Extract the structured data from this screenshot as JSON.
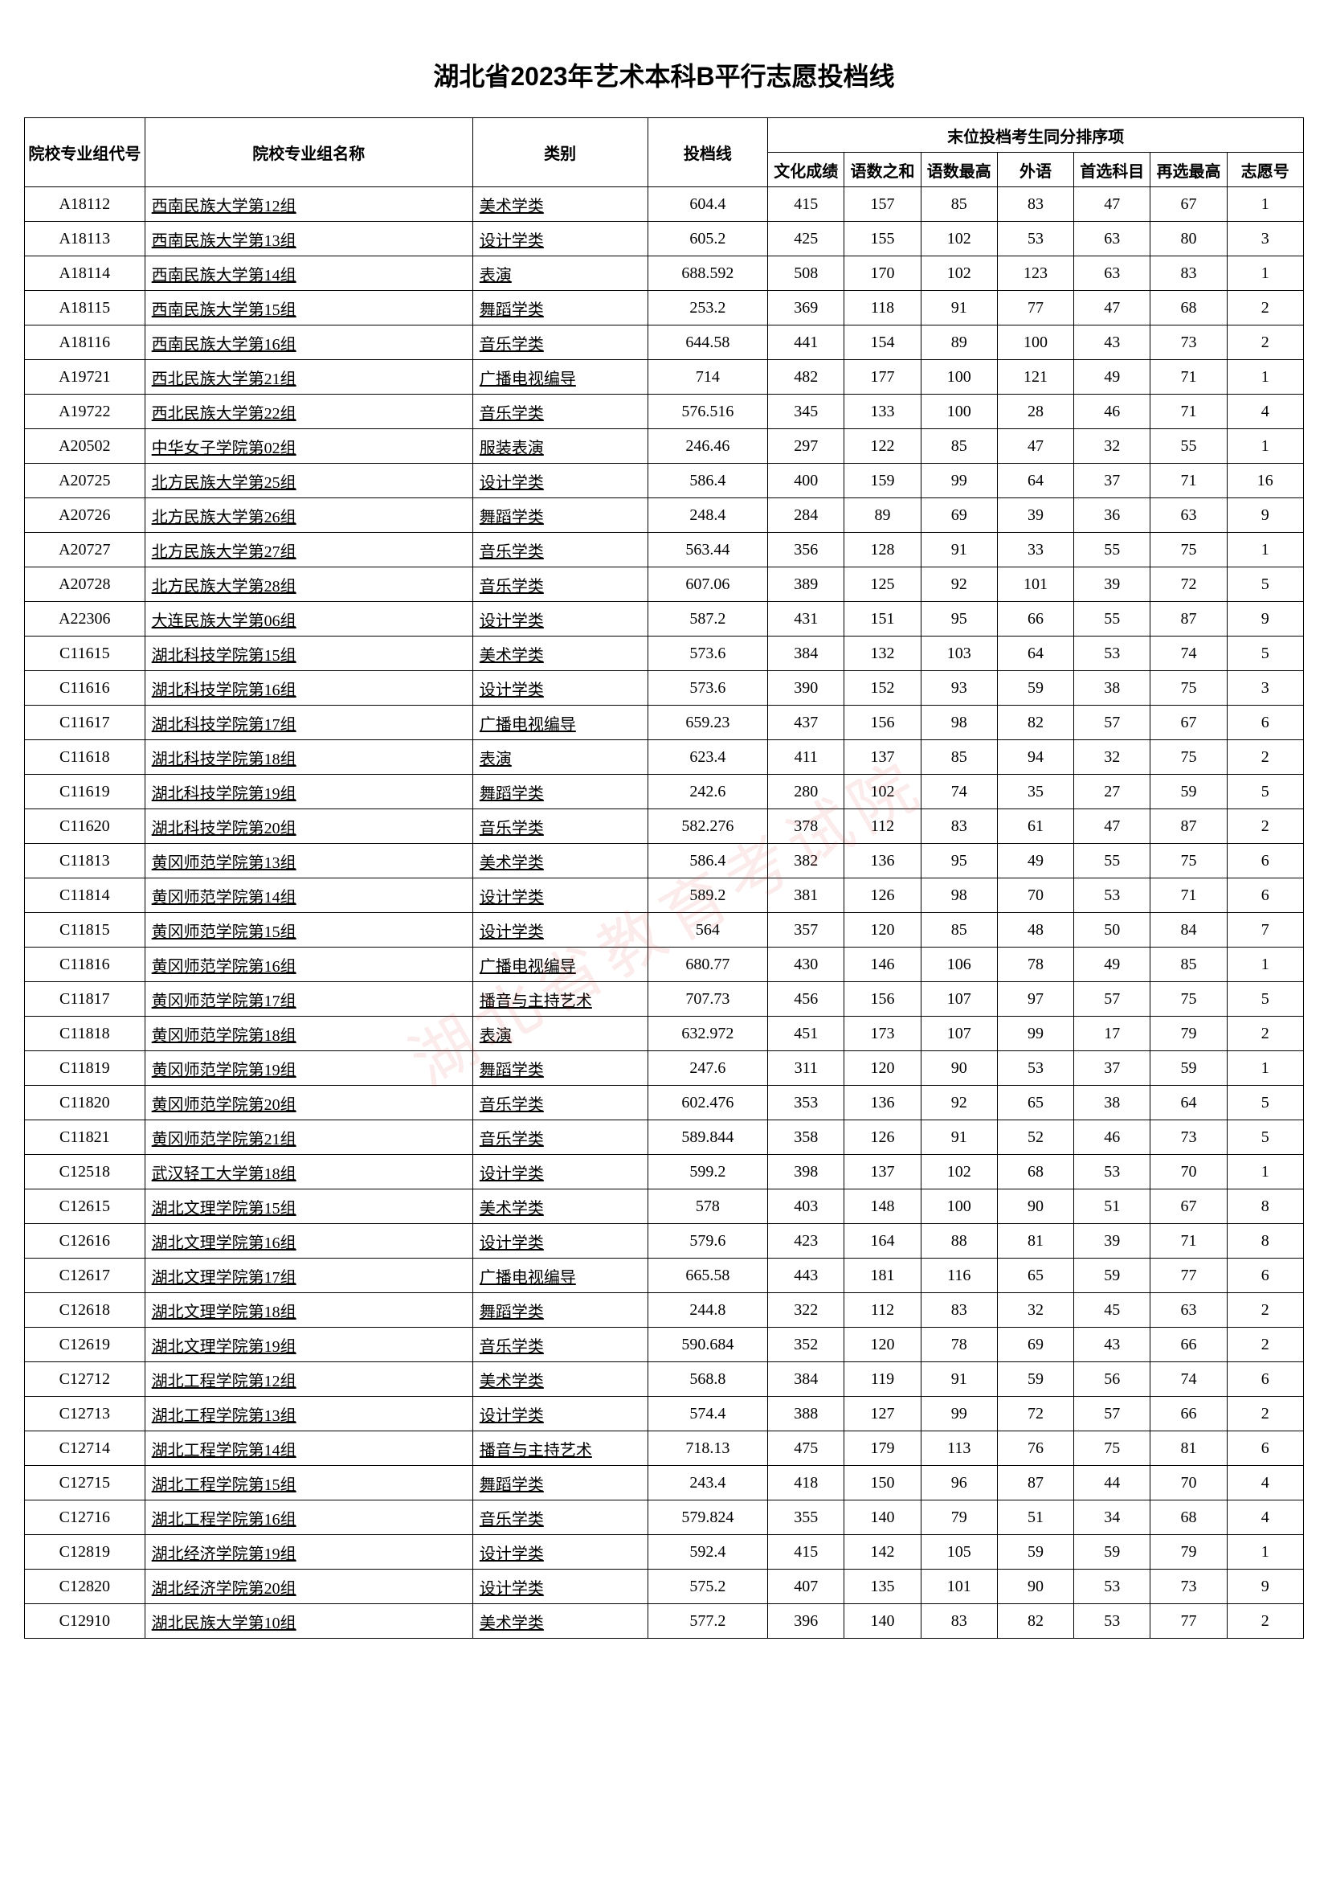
{
  "title": "湖北省2023年艺术本科B平行志愿投档线",
  "watermark": "湖北省教育考试院",
  "header": {
    "group_top": "末位投档考生同分排序项",
    "code": "院校专业组代号",
    "name": "院校专业组名称",
    "category": "类别",
    "score": "投档线",
    "c1": "文化成绩",
    "c2": "语数之和",
    "c3": "语数最高",
    "c4": "外语",
    "c5": "首选科目",
    "c6": "再选最高",
    "c7": "志愿号"
  },
  "rows": [
    {
      "code": "A18112",
      "name": "西南民族大学第12组",
      "cat": "美术学类",
      "score": "604.4",
      "c1": "415",
      "c2": "157",
      "c3": "85",
      "c4": "83",
      "c5": "47",
      "c6": "67",
      "c7": "1"
    },
    {
      "code": "A18113",
      "name": "西南民族大学第13组",
      "cat": "设计学类",
      "score": "605.2",
      "c1": "425",
      "c2": "155",
      "c3": "102",
      "c4": "53",
      "c5": "63",
      "c6": "80",
      "c7": "3"
    },
    {
      "code": "A18114",
      "name": "西南民族大学第14组",
      "cat": "表演",
      "score": "688.592",
      "c1": "508",
      "c2": "170",
      "c3": "102",
      "c4": "123",
      "c5": "63",
      "c6": "83",
      "c7": "1"
    },
    {
      "code": "A18115",
      "name": "西南民族大学第15组",
      "cat": "舞蹈学类",
      "score": "253.2",
      "c1": "369",
      "c2": "118",
      "c3": "91",
      "c4": "77",
      "c5": "47",
      "c6": "68",
      "c7": "2"
    },
    {
      "code": "A18116",
      "name": "西南民族大学第16组",
      "cat": "音乐学类",
      "score": "644.58",
      "c1": "441",
      "c2": "154",
      "c3": "89",
      "c4": "100",
      "c5": "43",
      "c6": "73",
      "c7": "2"
    },
    {
      "code": "A19721",
      "name": "西北民族大学第21组",
      "cat": "广播电视编导",
      "score": "714",
      "c1": "482",
      "c2": "177",
      "c3": "100",
      "c4": "121",
      "c5": "49",
      "c6": "71",
      "c7": "1"
    },
    {
      "code": "A19722",
      "name": "西北民族大学第22组",
      "cat": "音乐学类",
      "score": "576.516",
      "c1": "345",
      "c2": "133",
      "c3": "100",
      "c4": "28",
      "c5": "46",
      "c6": "71",
      "c7": "4"
    },
    {
      "code": "A20502",
      "name": "中华女子学院第02组",
      "cat": "服装表演",
      "score": "246.46",
      "c1": "297",
      "c2": "122",
      "c3": "85",
      "c4": "47",
      "c5": "32",
      "c6": "55",
      "c7": "1"
    },
    {
      "code": "A20725",
      "name": "北方民族大学第25组",
      "cat": "设计学类",
      "score": "586.4",
      "c1": "400",
      "c2": "159",
      "c3": "99",
      "c4": "64",
      "c5": "37",
      "c6": "71",
      "c7": "16"
    },
    {
      "code": "A20726",
      "name": "北方民族大学第26组",
      "cat": "舞蹈学类",
      "score": "248.4",
      "c1": "284",
      "c2": "89",
      "c3": "69",
      "c4": "39",
      "c5": "36",
      "c6": "63",
      "c7": "9"
    },
    {
      "code": "A20727",
      "name": "北方民族大学第27组",
      "cat": "音乐学类",
      "score": "563.44",
      "c1": "356",
      "c2": "128",
      "c3": "91",
      "c4": "33",
      "c5": "55",
      "c6": "75",
      "c7": "1"
    },
    {
      "code": "A20728",
      "name": "北方民族大学第28组",
      "cat": "音乐学类",
      "score": "607.06",
      "c1": "389",
      "c2": "125",
      "c3": "92",
      "c4": "101",
      "c5": "39",
      "c6": "72",
      "c7": "5"
    },
    {
      "code": "A22306",
      "name": "大连民族大学第06组",
      "cat": "设计学类",
      "score": "587.2",
      "c1": "431",
      "c2": "151",
      "c3": "95",
      "c4": "66",
      "c5": "55",
      "c6": "87",
      "c7": "9"
    },
    {
      "code": "C11615",
      "name": "湖北科技学院第15组",
      "cat": "美术学类",
      "score": "573.6",
      "c1": "384",
      "c2": "132",
      "c3": "103",
      "c4": "64",
      "c5": "53",
      "c6": "74",
      "c7": "5"
    },
    {
      "code": "C11616",
      "name": "湖北科技学院第16组",
      "cat": "设计学类",
      "score": "573.6",
      "c1": "390",
      "c2": "152",
      "c3": "93",
      "c4": "59",
      "c5": "38",
      "c6": "75",
      "c7": "3"
    },
    {
      "code": "C11617",
      "name": "湖北科技学院第17组",
      "cat": "广播电视编导",
      "score": "659.23",
      "c1": "437",
      "c2": "156",
      "c3": "98",
      "c4": "82",
      "c5": "57",
      "c6": "67",
      "c7": "6"
    },
    {
      "code": "C11618",
      "name": "湖北科技学院第18组",
      "cat": "表演",
      "score": "623.4",
      "c1": "411",
      "c2": "137",
      "c3": "85",
      "c4": "94",
      "c5": "32",
      "c6": "75",
      "c7": "2"
    },
    {
      "code": "C11619",
      "name": "湖北科技学院第19组",
      "cat": "舞蹈学类",
      "score": "242.6",
      "c1": "280",
      "c2": "102",
      "c3": "74",
      "c4": "35",
      "c5": "27",
      "c6": "59",
      "c7": "5"
    },
    {
      "code": "C11620",
      "name": "湖北科技学院第20组",
      "cat": "音乐学类",
      "score": "582.276",
      "c1": "378",
      "c2": "112",
      "c3": "83",
      "c4": "61",
      "c5": "47",
      "c6": "87",
      "c7": "2"
    },
    {
      "code": "C11813",
      "name": "黄冈师范学院第13组",
      "cat": "美术学类",
      "score": "586.4",
      "c1": "382",
      "c2": "136",
      "c3": "95",
      "c4": "49",
      "c5": "55",
      "c6": "75",
      "c7": "6"
    },
    {
      "code": "C11814",
      "name": "黄冈师范学院第14组",
      "cat": "设计学类",
      "score": "589.2",
      "c1": "381",
      "c2": "126",
      "c3": "98",
      "c4": "70",
      "c5": "53",
      "c6": "71",
      "c7": "6"
    },
    {
      "code": "C11815",
      "name": "黄冈师范学院第15组",
      "cat": "设计学类",
      "score": "564",
      "c1": "357",
      "c2": "120",
      "c3": "85",
      "c4": "48",
      "c5": "50",
      "c6": "84",
      "c7": "7"
    },
    {
      "code": "C11816",
      "name": "黄冈师范学院第16组",
      "cat": "广播电视编导",
      "score": "680.77",
      "c1": "430",
      "c2": "146",
      "c3": "106",
      "c4": "78",
      "c5": "49",
      "c6": "85",
      "c7": "1"
    },
    {
      "code": "C11817",
      "name": "黄冈师范学院第17组",
      "cat": "播音与主持艺术",
      "score": "707.73",
      "c1": "456",
      "c2": "156",
      "c3": "107",
      "c4": "97",
      "c5": "57",
      "c6": "75",
      "c7": "5"
    },
    {
      "code": "C11818",
      "name": "黄冈师范学院第18组",
      "cat": "表演",
      "score": "632.972",
      "c1": "451",
      "c2": "173",
      "c3": "107",
      "c4": "99",
      "c5": "17",
      "c6": "79",
      "c7": "2"
    },
    {
      "code": "C11819",
      "name": "黄冈师范学院第19组",
      "cat": "舞蹈学类",
      "score": "247.6",
      "c1": "311",
      "c2": "120",
      "c3": "90",
      "c4": "53",
      "c5": "37",
      "c6": "59",
      "c7": "1"
    },
    {
      "code": "C11820",
      "name": "黄冈师范学院第20组",
      "cat": "音乐学类",
      "score": "602.476",
      "c1": "353",
      "c2": "136",
      "c3": "92",
      "c4": "65",
      "c5": "38",
      "c6": "64",
      "c7": "5"
    },
    {
      "code": "C11821",
      "name": "黄冈师范学院第21组",
      "cat": "音乐学类",
      "score": "589.844",
      "c1": "358",
      "c2": "126",
      "c3": "91",
      "c4": "52",
      "c5": "46",
      "c6": "73",
      "c7": "5"
    },
    {
      "code": "C12518",
      "name": "武汉轻工大学第18组",
      "cat": "设计学类",
      "score": "599.2",
      "c1": "398",
      "c2": "137",
      "c3": "102",
      "c4": "68",
      "c5": "53",
      "c6": "70",
      "c7": "1"
    },
    {
      "code": "C12615",
      "name": "湖北文理学院第15组",
      "cat": "美术学类",
      "score": "578",
      "c1": "403",
      "c2": "148",
      "c3": "100",
      "c4": "90",
      "c5": "51",
      "c6": "67",
      "c7": "8"
    },
    {
      "code": "C12616",
      "name": "湖北文理学院第16组",
      "cat": "设计学类",
      "score": "579.6",
      "c1": "423",
      "c2": "164",
      "c3": "88",
      "c4": "81",
      "c5": "39",
      "c6": "71",
      "c7": "8"
    },
    {
      "code": "C12617",
      "name": "湖北文理学院第17组",
      "cat": "广播电视编导",
      "score": "665.58",
      "c1": "443",
      "c2": "181",
      "c3": "116",
      "c4": "65",
      "c5": "59",
      "c6": "77",
      "c7": "6"
    },
    {
      "code": "C12618",
      "name": "湖北文理学院第18组",
      "cat": "舞蹈学类",
      "score": "244.8",
      "c1": "322",
      "c2": "112",
      "c3": "83",
      "c4": "32",
      "c5": "45",
      "c6": "63",
      "c7": "2"
    },
    {
      "code": "C12619",
      "name": "湖北文理学院第19组",
      "cat": "音乐学类",
      "score": "590.684",
      "c1": "352",
      "c2": "120",
      "c3": "78",
      "c4": "69",
      "c5": "43",
      "c6": "66",
      "c7": "2"
    },
    {
      "code": "C12712",
      "name": "湖北工程学院第12组",
      "cat": "美术学类",
      "score": "568.8",
      "c1": "384",
      "c2": "119",
      "c3": "91",
      "c4": "59",
      "c5": "56",
      "c6": "74",
      "c7": "6"
    },
    {
      "code": "C12713",
      "name": "湖北工程学院第13组",
      "cat": "设计学类",
      "score": "574.4",
      "c1": "388",
      "c2": "127",
      "c3": "99",
      "c4": "72",
      "c5": "57",
      "c6": "66",
      "c7": "2"
    },
    {
      "code": "C12714",
      "name": "湖北工程学院第14组",
      "cat": "播音与主持艺术",
      "score": "718.13",
      "c1": "475",
      "c2": "179",
      "c3": "113",
      "c4": "76",
      "c5": "75",
      "c6": "81",
      "c7": "6"
    },
    {
      "code": "C12715",
      "name": "湖北工程学院第15组",
      "cat": "舞蹈学类",
      "score": "243.4",
      "c1": "418",
      "c2": "150",
      "c3": "96",
      "c4": "87",
      "c5": "44",
      "c6": "70",
      "c7": "4"
    },
    {
      "code": "C12716",
      "name": "湖北工程学院第16组",
      "cat": "音乐学类",
      "score": "579.824",
      "c1": "355",
      "c2": "140",
      "c3": "79",
      "c4": "51",
      "c5": "34",
      "c6": "68",
      "c7": "4"
    },
    {
      "code": "C12819",
      "name": "湖北经济学院第19组",
      "cat": "设计学类",
      "score": "592.4",
      "c1": "415",
      "c2": "142",
      "c3": "105",
      "c4": "59",
      "c5": "59",
      "c6": "79",
      "c7": "1"
    },
    {
      "code": "C12820",
      "name": "湖北经济学院第20组",
      "cat": "设计学类",
      "score": "575.2",
      "c1": "407",
      "c2": "135",
      "c3": "101",
      "c4": "90",
      "c5": "53",
      "c6": "73",
      "c7": "9"
    },
    {
      "code": "C12910",
      "name": "湖北民族大学第10组",
      "cat": "美术学类",
      "score": "577.2",
      "c1": "396",
      "c2": "140",
      "c3": "83",
      "c4": "82",
      "c5": "53",
      "c6": "77",
      "c7": "2"
    }
  ]
}
